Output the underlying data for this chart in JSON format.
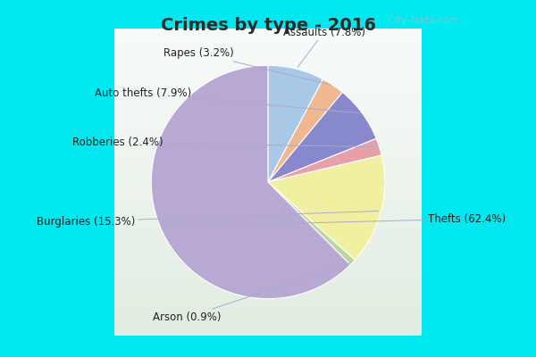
{
  "title": "Crimes by type - 2016",
  "title_fontsize": 14,
  "title_color": "#2a2a2a",
  "labels": [
    "Thefts",
    "Assaults",
    "Rapes",
    "Auto thefts",
    "Robberies",
    "Burglaries",
    "Arson"
  ],
  "values": [
    62.4,
    7.8,
    3.2,
    7.9,
    2.4,
    15.3,
    0.9
  ],
  "colors": [
    "#b8a8d4",
    "#a8c8e8",
    "#f0b890",
    "#8888cc",
    "#e8a0a8",
    "#f0f0a0",
    "#b8d8a0"
  ],
  "outer_bg": "#00e8f0",
  "label_fontsize": 8.5,
  "watermark": "  City-Data.com",
  "start_angle": 90,
  "counterclock": false
}
